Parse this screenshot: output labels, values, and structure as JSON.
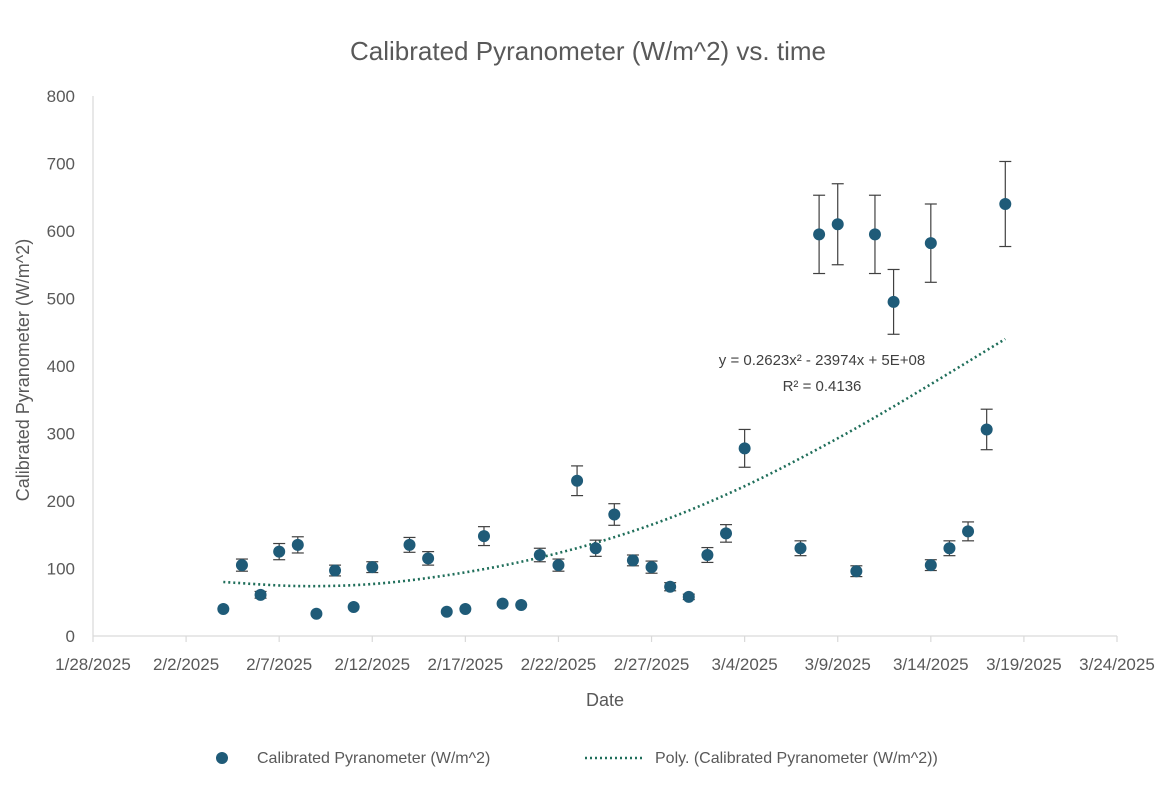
{
  "chart_data": {
    "type": "scatter",
    "title": "Calibrated Pyranometer (W/m^2) vs. time",
    "xlabel": "Date",
    "ylabel": "Calibrated Pyranometer (W/m^2)",
    "xlim": [
      "1/28/2025",
      "3/24/2025"
    ],
    "ylim": [
      0,
      800
    ],
    "x_ticks": [
      "1/28/2025",
      "2/2/2025",
      "2/7/2025",
      "2/12/2025",
      "2/17/2025",
      "2/22/2025",
      "2/27/2025",
      "3/4/2025",
      "3/9/2025",
      "3/14/2025",
      "3/19/2025",
      "3/24/2025"
    ],
    "y_ticks": [
      0,
      100,
      200,
      300,
      400,
      500,
      600,
      700,
      800
    ],
    "grid": false,
    "legend_position": "bottom",
    "colors": {
      "marker": "#1f5b78",
      "trend": "#1f6e5a",
      "error_bar": "#404040",
      "axis": "#d9d9d9"
    },
    "series": [
      {
        "name": "Calibrated Pyranometer (W/m^2)",
        "points": [
          {
            "x": "2/4/2025",
            "y": 40,
            "err": 0
          },
          {
            "x": "2/5/2025",
            "y": 105,
            "err": 9
          },
          {
            "x": "2/6/2025",
            "y": 61,
            "err": 5
          },
          {
            "x": "2/7/2025",
            "y": 125,
            "err": 12
          },
          {
            "x": "2/8/2025",
            "y": 135,
            "err": 12
          },
          {
            "x": "2/9/2025",
            "y": 33,
            "err": 0
          },
          {
            "x": "2/10/2025",
            "y": 97,
            "err": 8
          },
          {
            "x": "2/11/2025",
            "y": 43,
            "err": 0
          },
          {
            "x": "2/12/2025",
            "y": 102,
            "err": 8
          },
          {
            "x": "2/14/2025",
            "y": 135,
            "err": 11
          },
          {
            "x": "2/15/2025",
            "y": 115,
            "err": 10
          },
          {
            "x": "2/16/2025",
            "y": 36,
            "err": 0
          },
          {
            "x": "2/17/2025",
            "y": 40,
            "err": 0
          },
          {
            "x": "2/18/2025",
            "y": 148,
            "err": 14
          },
          {
            "x": "2/19/2025",
            "y": 48,
            "err": 0
          },
          {
            "x": "2/20/2025",
            "y": 46,
            "err": 0
          },
          {
            "x": "2/21/2025",
            "y": 120,
            "err": 10
          },
          {
            "x": "2/22/2025",
            "y": 105,
            "err": 9
          },
          {
            "x": "2/23/2025",
            "y": 230,
            "err": 22
          },
          {
            "x": "2/24/2025",
            "y": 130,
            "err": 12
          },
          {
            "x": "2/25/2025",
            "y": 180,
            "err": 16
          },
          {
            "x": "2/26/2025",
            "y": 112,
            "err": 8
          },
          {
            "x": "2/27/2025",
            "y": 102,
            "err": 9
          },
          {
            "x": "2/28/2025",
            "y": 73,
            "err": 6
          },
          {
            "x": "3/1/2025",
            "y": 58,
            "err": 4
          },
          {
            "x": "3/2/2025",
            "y": 120,
            "err": 11
          },
          {
            "x": "3/3/2025",
            "y": 152,
            "err": 13
          },
          {
            "x": "3/4/2025",
            "y": 278,
            "err": 28
          },
          {
            "x": "3/7/2025",
            "y": 130,
            "err": 11
          },
          {
            "x": "3/8/2025",
            "y": 595,
            "err": 58
          },
          {
            "x": "3/9/2025",
            "y": 610,
            "err": 60
          },
          {
            "x": "3/10/2025",
            "y": 96,
            "err": 8
          },
          {
            "x": "3/11/2025",
            "y": 595,
            "err": 58
          },
          {
            "x": "3/12/2025",
            "y": 495,
            "err": 48
          },
          {
            "x": "3/14/2025",
            "y": 582,
            "err": 58
          },
          {
            "x": "3/14/2025",
            "y": 105,
            "err": 8
          },
          {
            "x": "3/15/2025",
            "y": 130,
            "err": 11
          },
          {
            "x": "3/16/2025",
            "y": 155,
            "err": 14
          },
          {
            "x": "3/17/2025",
            "y": 306,
            "err": 30
          },
          {
            "x": "3/18/2025",
            "y": 640,
            "err": 63
          }
        ]
      },
      {
        "name": "Poly. (Calibrated Pyranometer (W/m^2))",
        "type": "trendline-polynomial",
        "x_range": [
          "2/4/2025",
          "3/18/2025"
        ],
        "approx_values": [
          {
            "x": "2/4/2025",
            "y": 80
          },
          {
            "x": "2/8/2025",
            "y": 74
          },
          {
            "x": "2/12/2025",
            "y": 77
          },
          {
            "x": "2/16/2025",
            "y": 90
          },
          {
            "x": "2/20/2025",
            "y": 110
          },
          {
            "x": "2/24/2025",
            "y": 138
          },
          {
            "x": "2/28/2025",
            "y": 175
          },
          {
            "x": "3/4/2025",
            "y": 222
          },
          {
            "x": "3/8/2025",
            "y": 278
          },
          {
            "x": "3/12/2025",
            "y": 340
          },
          {
            "x": "3/18/2025",
            "y": 440
          }
        ]
      }
    ],
    "annotations": {
      "equation": "y = 0.2623x² - 23974x + 5E+08",
      "r_squared": "R² = 0.4136"
    }
  }
}
